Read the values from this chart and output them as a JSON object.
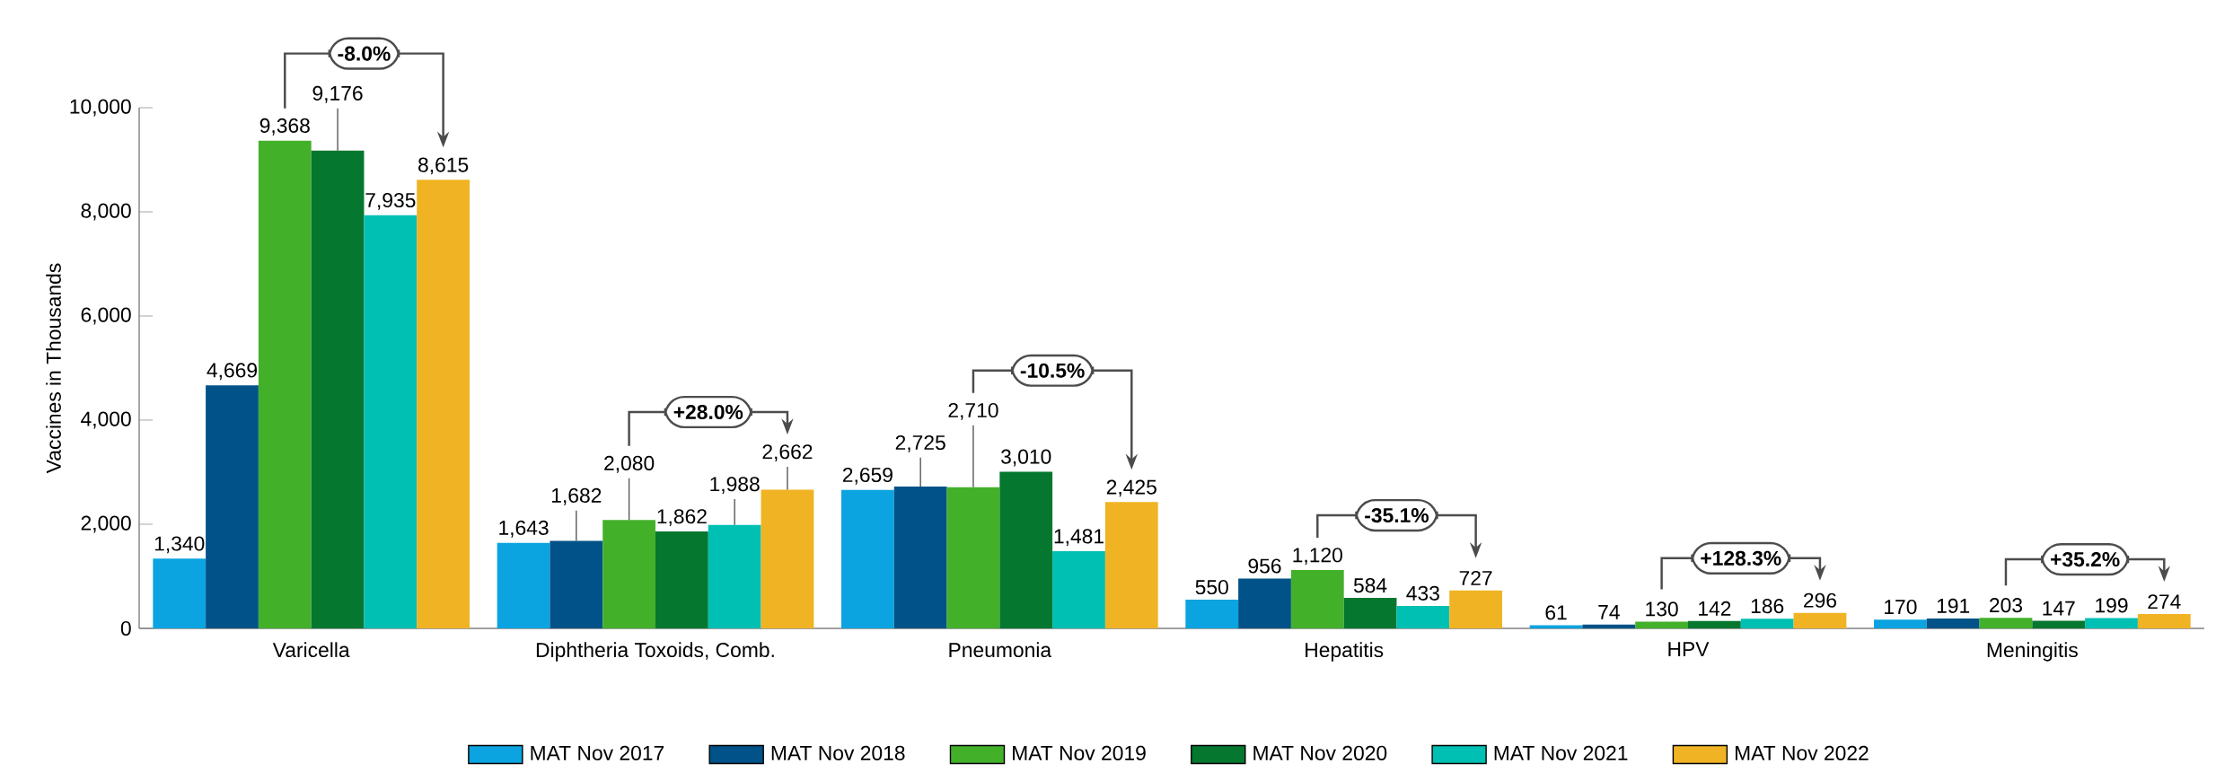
{
  "chart_data": {
    "type": "bar",
    "ylabel": "Vaccines in Thousands",
    "categories": [
      "Varicella",
      "Diphtheria Toxoids, Comb.",
      "Pneumonia",
      "Hepatitis",
      "HPV",
      "Meningitis"
    ],
    "series": [
      {
        "name": "MAT  Nov 2017",
        "color": "#0ba3e0",
        "values": [
          1340,
          1643,
          2659,
          550,
          61,
          170
        ],
        "value_labels": [
          "1,340",
          "1,643",
          "2,659",
          "550",
          "61",
          "170"
        ]
      },
      {
        "name": "MAT  Nov 2018",
        "color": "#005288",
        "values": [
          4669,
          1682,
          2725,
          956,
          74,
          191
        ],
        "value_labels": [
          "4,669",
          "1,682",
          "2,725",
          "956",
          "74",
          "191"
        ]
      },
      {
        "name": "MAT  Nov 2019",
        "color": "#43b02a",
        "values": [
          9368,
          2080,
          2710,
          1120,
          130,
          203
        ],
        "value_labels": [
          "9,368",
          "2,080",
          "2,710",
          "1,120",
          "130",
          "203"
        ]
      },
      {
        "name": "MAT  Nov 2020",
        "color": "#05772f",
        "values": [
          9176,
          1862,
          3010,
          584,
          142,
          147
        ],
        "value_labels": [
          "9,176",
          "1,862",
          "3,010",
          "584",
          "142",
          "147"
        ]
      },
      {
        "name": "MAT  Nov 2021",
        "color": "#00bfb3",
        "values": [
          7935,
          1988,
          1481,
          433,
          186,
          199
        ],
        "value_labels": [
          "7,935",
          "1,988",
          "1,481",
          "433",
          "186",
          "199"
        ]
      },
      {
        "name": "MAT  Nov 2022",
        "color": "#f0b323",
        "values": [
          8615,
          2662,
          2425,
          727,
          296,
          274
        ],
        "value_labels": [
          "8,615",
          "2,662",
          "2,425",
          "727",
          "296",
          "274"
        ]
      }
    ],
    "ylim": [
      0,
      10000
    ],
    "yticks": [
      0,
      {
        "value": 2000,
        "label": "2,000"
      },
      {
        "value": 4000,
        "label": "4,000"
      },
      {
        "value": 6000,
        "label": "6,000"
      },
      {
        "value": 8000,
        "label": "8,000"
      },
      {
        "value": 10000,
        "label": "10,000"
      }
    ],
    "legend": "bottom",
    "annotations": [
      "-8.0%",
      "+28.0%",
      "-10.5%",
      "-35.1%",
      "+128.3%",
      "+35.2%"
    ]
  }
}
